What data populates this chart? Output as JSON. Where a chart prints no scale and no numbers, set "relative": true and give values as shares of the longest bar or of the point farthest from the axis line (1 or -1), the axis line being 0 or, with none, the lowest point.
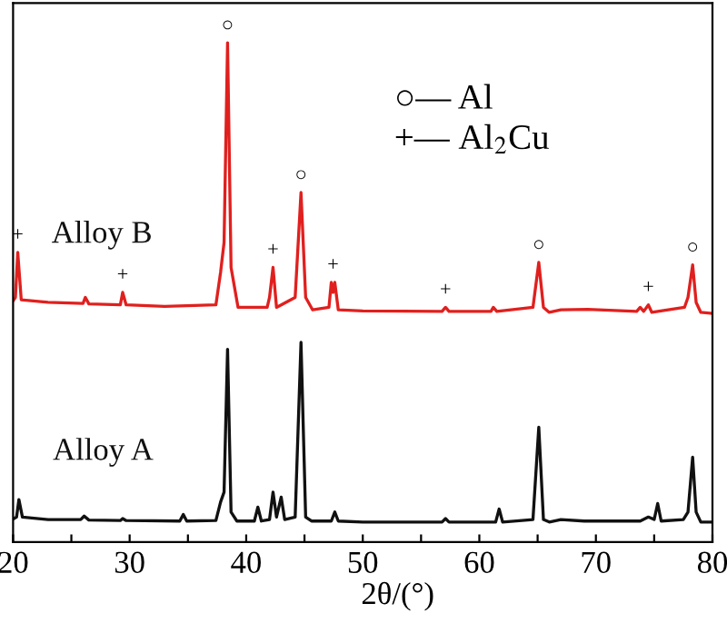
{
  "chart_data": {
    "type": "line",
    "relative": true,
    "xlabel": "2θ/(°)",
    "xlim": [
      20,
      80
    ],
    "xticks": [
      20,
      {
        "value": 25,
        "label": null
      },
      30,
      {
        "value": 35,
        "label": null
      },
      40,
      {
        "value": 45,
        "label": null
      },
      50,
      {
        "value": 55,
        "label": null
      },
      60,
      {
        "value": 65,
        "label": null
      },
      70,
      {
        "value": 75,
        "label": null
      },
      80
    ],
    "tick_labels": "x",
    "grid": false,
    "legend": false,
    "marker": "none",
    "line_style": "solid",
    "series": [
      {
        "name": "Alloy A",
        "color": "#111111",
        "x": [
          20,
          20.3,
          20.5,
          20.8,
          23,
          25.8,
          26.1,
          26.5,
          29.2,
          29.4,
          29.7,
          34.3,
          34.6,
          34.9,
          37.4,
          37.8,
          38.1,
          38.4,
          38.7,
          39.2,
          40.7,
          41.0,
          41.3,
          42.0,
          42.3,
          42.6,
          43.0,
          43.3,
          44.2,
          44.7,
          45.1,
          45.6,
          47.3,
          47.6,
          47.9,
          50,
          56.8,
          57.1,
          57.4,
          61.4,
          61.7,
          62.0,
          64.6,
          65.1,
          65.5,
          66,
          67,
          69,
          73.8,
          74.5,
          75.0,
          75.3,
          75.6,
          77.5,
          77.9,
          78.3,
          78.6,
          79,
          80
        ],
        "values": [
          0.046,
          0.05,
          0.085,
          0.05,
          0.045,
          0.045,
          0.052,
          0.044,
          0.043,
          0.047,
          0.043,
          0.042,
          0.055,
          0.042,
          0.043,
          0.08,
          0.1,
          0.386,
          0.06,
          0.042,
          0.042,
          0.07,
          0.042,
          0.045,
          0.1,
          0.05,
          0.09,
          0.045,
          0.05,
          0.4,
          0.05,
          0.042,
          0.042,
          0.06,
          0.042,
          0.04,
          0.04,
          0.047,
          0.04,
          0.04,
          0.066,
          0.04,
          0.045,
          0.23,
          0.045,
          0.04,
          0.045,
          0.042,
          0.042,
          0.05,
          0.045,
          0.077,
          0.042,
          0.045,
          0.06,
          0.17,
          0.06,
          0.04,
          0.04
        ]
      },
      {
        "name": "Alloy B",
        "color": "#e0201e",
        "x": [
          20,
          20.2,
          20.4,
          20.7,
          23,
          26.0,
          26.2,
          26.5,
          29.2,
          29.4,
          29.7,
          33,
          37.4,
          37.8,
          38.1,
          38.4,
          38.7,
          39.3,
          41.8,
          42.0,
          42.3,
          42.6,
          44.2,
          44.7,
          45.1,
          45.7,
          47.1,
          47.3,
          47.45,
          47.6,
          47.9,
          50,
          56.8,
          57.1,
          57.4,
          61,
          61.2,
          61.5,
          64.6,
          65.1,
          65.5,
          66,
          67,
          69.3,
          73.5,
          73.8,
          74.1,
          74.5,
          74.8,
          77.6,
          77.9,
          78.3,
          78.6,
          79,
          80
        ],
        "values": [
          0.483,
          0.49,
          0.58,
          0.485,
          0.48,
          0.478,
          0.49,
          0.477,
          0.475,
          0.5,
          0.475,
          0.472,
          0.475,
          0.54,
          0.6,
          1.0,
          0.55,
          0.47,
          0.47,
          0.49,
          0.55,
          0.47,
          0.49,
          0.7,
          0.49,
          0.465,
          0.47,
          0.52,
          0.5,
          0.52,
          0.465,
          0.463,
          0.462,
          0.47,
          0.462,
          0.462,
          0.47,
          0.462,
          0.47,
          0.56,
          0.47,
          0.46,
          0.465,
          0.466,
          0.462,
          0.47,
          0.462,
          0.475,
          0.46,
          0.47,
          0.49,
          0.555,
          0.48,
          0.46,
          0.458
        ]
      }
    ],
    "annotations": [
      {
        "text": "○",
        "x": 38.4,
        "y": 1.0
      },
      {
        "text": "○",
        "x": 44.7,
        "y": 0.7
      },
      {
        "text": "○",
        "x": 65.1,
        "y": 0.56
      },
      {
        "text": "○",
        "x": 78.3,
        "y": 0.555
      },
      {
        "text": "+",
        "x": 20.4,
        "y": 0.58
      },
      {
        "text": "+",
        "x": 29.4,
        "y": 0.5
      },
      {
        "text": "+",
        "x": 42.3,
        "y": 0.55
      },
      {
        "text": "+",
        "x": 47.45,
        "y": 0.52
      },
      {
        "text": "+",
        "x": 57.1,
        "y": 0.47
      },
      {
        "text": "+",
        "x": 74.5,
        "y": 0.475
      },
      "○— Al",
      "+— Al$_{2}$Cu"
    ]
  }
}
